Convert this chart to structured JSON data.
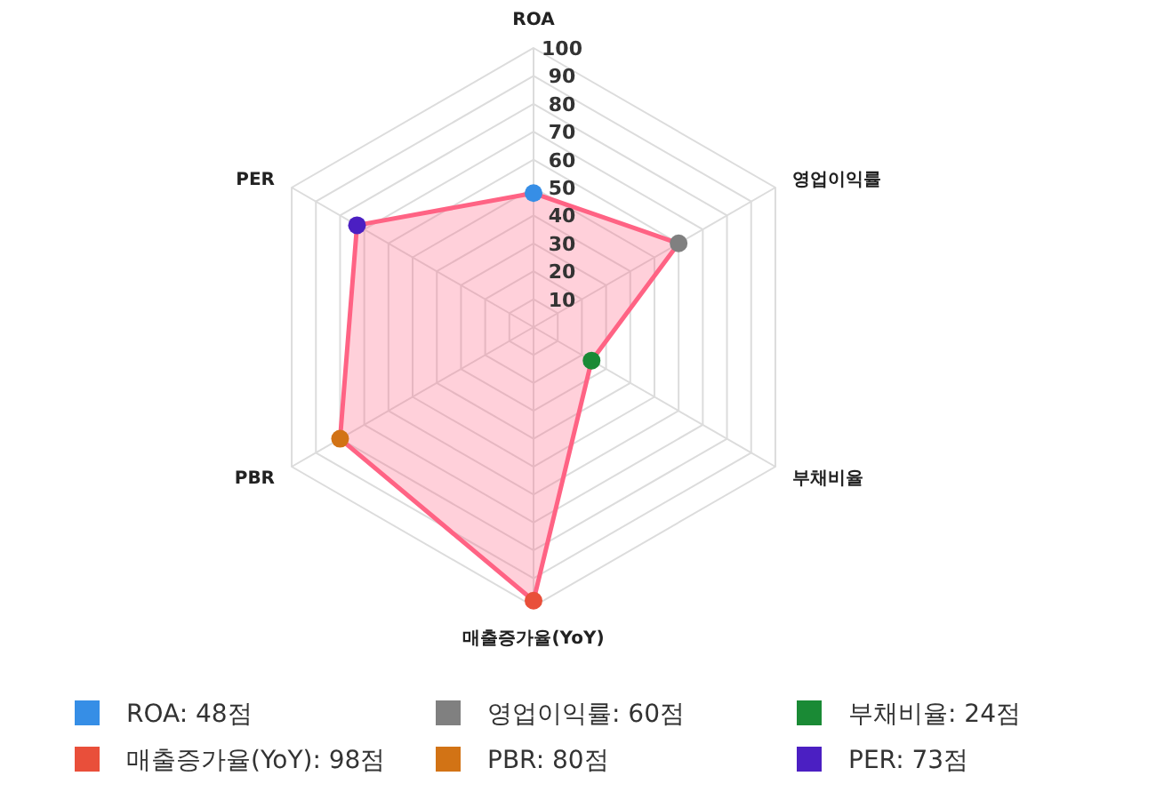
{
  "chart_data": {
    "type": "radar",
    "categories": [
      "ROA",
      "영업이익률",
      "부채비율",
      "매출증가율(YoY)",
      "PBR",
      "PER"
    ],
    "series": [
      {
        "color": "#ff6384",
        "values": [
          48,
          60,
          24,
          98,
          80,
          73
        ],
        "colors": [
          "#368ee6",
          "#808080",
          "#1a8a35",
          "#e94f3a",
          "#d27315",
          "#4b1fc2"
        ]
      }
    ],
    "ylim": [
      0,
      100
    ],
    "yticks": [
      10,
      20,
      30,
      40,
      50,
      60,
      70,
      80,
      90,
      100
    ],
    "marker": "circle",
    "annotations": [
      "ROA: 48점",
      "영업이익률: 60점",
      "부채비율: 24점",
      "매출증가율(YoY): 98점",
      "PBR: 80점",
      "PER: 73점"
    ]
  }
}
